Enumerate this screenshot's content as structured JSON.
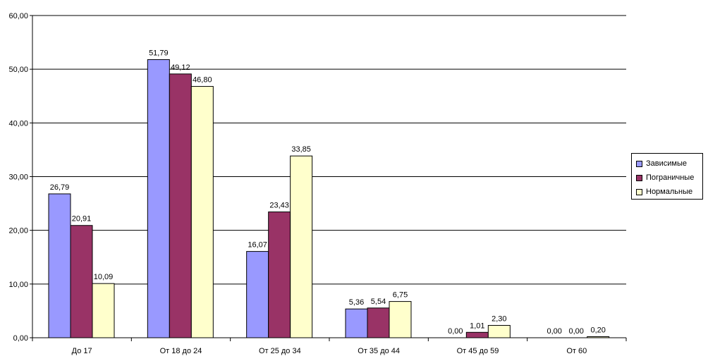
{
  "chart_data": {
    "type": "bar",
    "categories": [
      "До 17",
      "От 18 до 24",
      "От 25 до 34",
      "От 35 до 44",
      "От 45 до 59",
      "От 60"
    ],
    "series": [
      {
        "name": "Зависимые",
        "values": [
          26.79,
          51.79,
          16.07,
          5.36,
          0.0,
          0.0
        ],
        "labels": [
          "26,79",
          "51,79",
          "16,07",
          "5,36",
          "0,00",
          "0,00"
        ],
        "color": "#9999ff"
      },
      {
        "name": "Пограничные",
        "values": [
          20.91,
          49.12,
          23.43,
          5.54,
          1.01,
          0.0
        ],
        "labels": [
          "20,91",
          "49,12",
          "23,43",
          "5,54",
          "1,01",
          "0,00"
        ],
        "color": "#993366"
      },
      {
        "name": "Нормальные",
        "values": [
          10.09,
          46.8,
          33.85,
          6.75,
          2.3,
          0.2
        ],
        "labels": [
          "10,09",
          "46,80",
          "33,85",
          "6,75",
          "2,30",
          "0,20"
        ],
        "color": "#ffffcc"
      }
    ],
    "yticks": [
      0,
      10,
      20,
      30,
      40,
      50,
      60
    ],
    "ytick_labels": [
      "0,00",
      "10,00",
      "20,00",
      "30,00",
      "40,00",
      "50,00",
      "60,00"
    ],
    "ylim": [
      0,
      60
    ],
    "grid": true,
    "legend_position": "right"
  }
}
